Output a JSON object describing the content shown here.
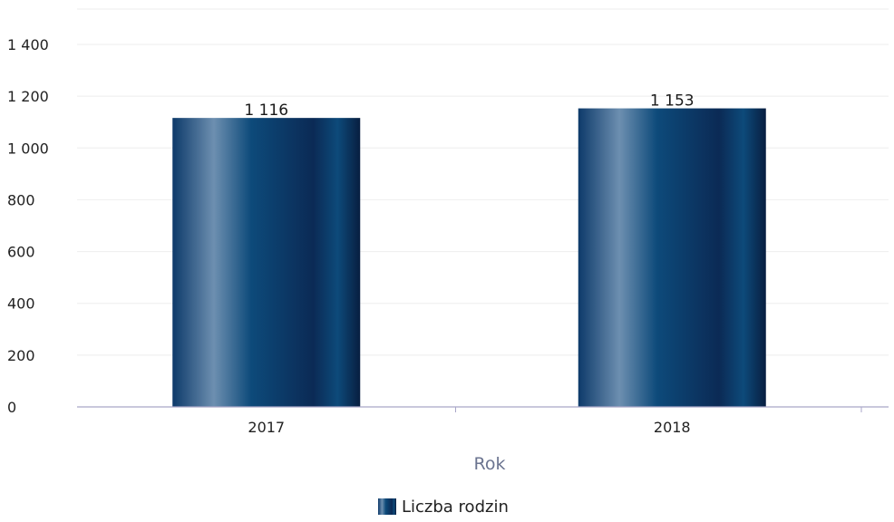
{
  "chart_data": {
    "type": "bar",
    "title": "",
    "xlabel": "Rok",
    "ylabel": "",
    "categories": [
      "2017",
      "2018"
    ],
    "series": [
      {
        "name": "Liczba rodzin",
        "values": [
          1116,
          1153
        ],
        "value_labels": [
          "1 116",
          "1 153"
        ]
      }
    ],
    "ylim": [
      0,
      1400
    ],
    "yticks": [
      0,
      200,
      400,
      600,
      800,
      1000,
      1200,
      1400
    ],
    "ytick_labels": [
      "0",
      "200",
      "400",
      "600",
      "800",
      "1 000",
      "1 200",
      "1 400"
    ],
    "grid": true,
    "legend": "bottom-center",
    "colors": {
      "bar_dark": "#0b2a55",
      "bar_mid": "#0d4a7a",
      "bar_light": "#6d8fb0",
      "axis_line": "#a9a6c8",
      "grid_line": "#eeeeee",
      "axis_title": "#6b7490"
    }
  }
}
